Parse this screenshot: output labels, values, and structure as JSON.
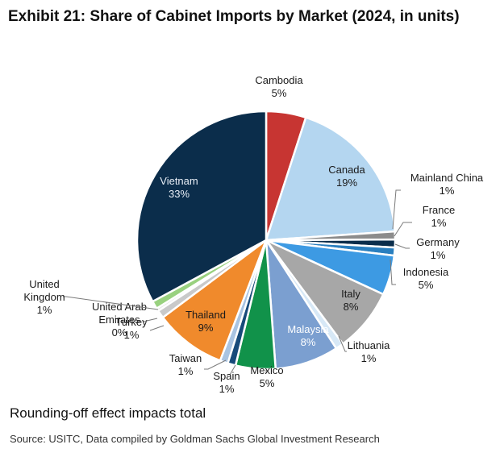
{
  "title": "Exhibit 21: Share of Cabinet Imports by Market (2024, in units)",
  "note": "Rounding-off effect impacts total",
  "source": "Source: USITC, Data compiled by Goldman Sachs Global Investment Research",
  "chart_data": {
    "type": "pie",
    "title": "Exhibit 21: Share of Cabinet Imports by Market (2024, in units)",
    "unit": "%",
    "slices": [
      {
        "name": "Cambodia",
        "value": 5,
        "label": "5%",
        "color": "#c73532"
      },
      {
        "name": "Canada",
        "value": 19,
        "label": "19%",
        "color": "#b4d6f0"
      },
      {
        "name": "Mainland China",
        "value": 1,
        "label": "1%",
        "color": "#8c8c8c"
      },
      {
        "name": "France",
        "value": 1,
        "label": "1%",
        "color": "#0b2d4b"
      },
      {
        "name": "Germany",
        "value": 1,
        "label": "1%",
        "color": "#2a7fbf"
      },
      {
        "name": "Indonesia",
        "value": 5,
        "label": "5%",
        "color": "#3d9ae3"
      },
      {
        "name": "Italy",
        "value": 8,
        "label": "8%",
        "color": "#a7a7a7"
      },
      {
        "name": "Lithuania",
        "value": 1,
        "label": "1%",
        "color": "#d7e8f6"
      },
      {
        "name": "Malaysia",
        "value": 8,
        "label": "8%",
        "color": "#7b9fd0"
      },
      {
        "name": "Mexico",
        "value": 5,
        "label": "5%",
        "color": "#11924a"
      },
      {
        "name": "Spain",
        "value": 1,
        "label": "1%",
        "color": "#174a7a"
      },
      {
        "name": "Taiwan",
        "value": 1,
        "label": "1%",
        "color": "#a9c4e2"
      },
      {
        "name": "Thailand",
        "value": 9,
        "label": "9%",
        "color": "#f08a2c"
      },
      {
        "name": "Turkey",
        "value": 1,
        "label": "1%",
        "color": "#c9c9c9"
      },
      {
        "name": "United Arab Emirates",
        "value": 0,
        "label": "0%",
        "color": "#e2e2e2"
      },
      {
        "name": "United Kingdom",
        "value": 1,
        "label": "1%",
        "color": "#99d17f"
      },
      {
        "name": "Vietnam",
        "value": 33,
        "label": "33%",
        "color": "#0b2d4b"
      }
    ]
  }
}
